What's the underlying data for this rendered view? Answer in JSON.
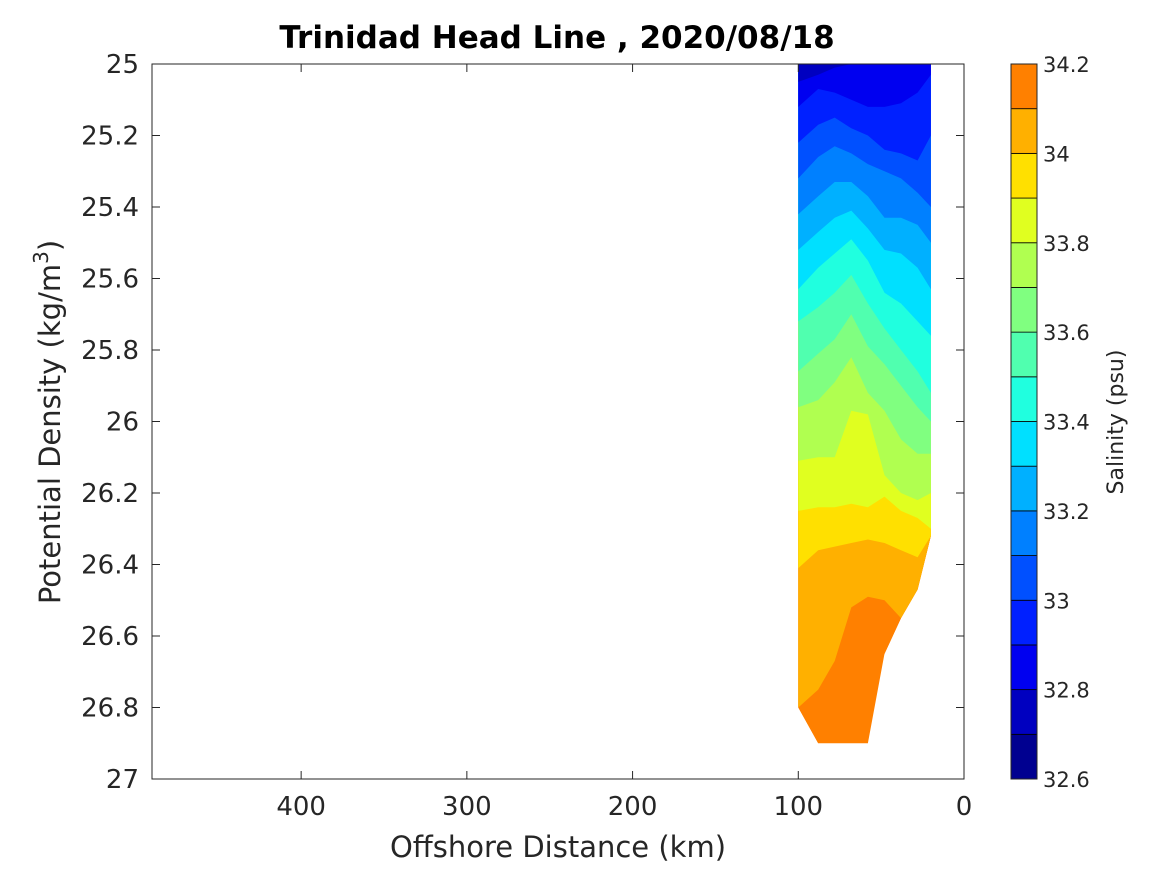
{
  "chart_data": {
    "type": "contourf",
    "title": "Trinidad Head Line , 2020/08/18",
    "xlabel": "Offshore Distance (km)",
    "ylabel": "Potential Density (kg/m",
    "ylabel_sup": "3",
    "ylabel_close": ")",
    "x_reversed": true,
    "y_reversed": true,
    "xlim": [
      0,
      490
    ],
    "ylim": [
      25,
      27
    ],
    "xticks": [
      400,
      300,
      200,
      100,
      0
    ],
    "xtick_labels": [
      "400",
      "300",
      "200",
      "100",
      "0"
    ],
    "yticks": [
      25,
      25.2,
      25.4,
      25.6,
      25.8,
      26,
      26.2,
      26.4,
      26.6,
      26.8,
      27
    ],
    "ytick_labels": [
      "25",
      "25.2",
      "25.4",
      "25.6",
      "25.8",
      "26",
      "26.2",
      "26.4",
      "26.6",
      "26.8",
      "27"
    ],
    "colorbar": {
      "label": "Salinity (psu)",
      "limits": [
        32.6,
        34.2
      ],
      "levels": [
        32.6,
        32.7,
        32.8,
        32.9,
        33.0,
        33.1,
        33.2,
        33.3,
        33.4,
        33.5,
        33.6,
        33.7,
        33.8,
        33.9,
        34.0,
        34.1,
        34.2
      ],
      "ticks": [
        32.6,
        32.8,
        33.0,
        33.2,
        33.4,
        33.6,
        33.8,
        34.0,
        34.2
      ],
      "tick_labels": [
        "32.6",
        "32.8",
        "33",
        "33.2",
        "33.4",
        "33.6",
        "33.8",
        "34",
        "34.2"
      ],
      "colors": [
        "#000090",
        "#0000c0",
        "#0000f0",
        "#0020ff",
        "#0050ff",
        "#0080ff",
        "#00b0ff",
        "#00e0ff",
        "#20ffdf",
        "#50ffaf",
        "#80ff80",
        "#b0ff50",
        "#e0ff20",
        "#ffe000",
        "#ffb000",
        "#ff8000",
        "#ff5000",
        "#ff2000",
        "#f00000",
        "#c00000"
      ]
    },
    "stations_km": [
      100,
      88,
      78,
      68,
      58,
      48,
      38,
      28,
      20
    ],
    "band_boundaries_sigma": [
      {
        "level": 32.7,
        "y": [
          25.01,
          25.02,
          25.0,
          null,
          null,
          null,
          null,
          null,
          null
        ]
      },
      {
        "level": 32.8,
        "y": [
          25.05,
          25.03,
          25.01,
          25.0,
          25.0,
          25.0,
          25.0,
          25.0,
          25.0
        ]
      },
      {
        "level": 32.9,
        "y": [
          25.12,
          25.07,
          25.08,
          25.1,
          25.12,
          25.12,
          25.11,
          25.08,
          25.03
        ]
      },
      {
        "level": 33.0,
        "y": [
          25.22,
          25.17,
          25.15,
          25.18,
          25.2,
          25.24,
          25.25,
          25.27,
          25.2
        ]
      },
      {
        "level": 33.1,
        "y": [
          25.32,
          25.26,
          25.23,
          25.25,
          25.28,
          25.3,
          25.32,
          25.36,
          25.4
        ]
      },
      {
        "level": 33.2,
        "y": [
          25.42,
          25.37,
          25.33,
          25.33,
          25.37,
          25.43,
          25.43,
          25.45,
          25.5
        ]
      },
      {
        "level": 33.3,
        "y": [
          25.52,
          25.47,
          25.43,
          25.41,
          25.46,
          25.52,
          25.53,
          25.57,
          25.63
        ]
      },
      {
        "level": 33.4,
        "y": [
          25.63,
          25.57,
          25.53,
          25.49,
          25.55,
          25.64,
          25.67,
          25.72,
          25.76
        ]
      },
      {
        "level": 33.5,
        "y": [
          25.72,
          25.68,
          25.64,
          25.59,
          25.67,
          25.74,
          25.8,
          25.86,
          25.92
        ]
      },
      {
        "level": 33.6,
        "y": [
          25.86,
          25.81,
          25.77,
          25.7,
          25.79,
          25.84,
          25.9,
          25.96,
          26.0
        ]
      },
      {
        "level": 33.7,
        "y": [
          25.96,
          25.94,
          25.89,
          25.82,
          25.92,
          25.97,
          26.05,
          26.09,
          26.09
        ]
      },
      {
        "level": 33.8,
        "y": [
          26.11,
          26.1,
          26.1,
          25.97,
          25.98,
          26.15,
          26.2,
          26.22,
          26.2
        ]
      },
      {
        "level": 33.9,
        "y": [
          26.25,
          26.24,
          26.24,
          26.23,
          26.24,
          26.21,
          26.25,
          26.27,
          26.3
        ]
      },
      {
        "level": 34.0,
        "y": [
          26.41,
          26.36,
          26.35,
          26.34,
          26.33,
          26.34,
          26.36,
          26.38,
          null
        ]
      },
      {
        "level": 34.1,
        "y": [
          26.8,
          26.75,
          26.67,
          26.52,
          26.49,
          26.5,
          null,
          null,
          null
        ]
      },
      {
        "level": 34.2,
        "y": [
          null,
          null,
          26.85,
          26.8,
          26.74,
          null,
          null,
          null,
          null
        ]
      }
    ],
    "data_bottom_sigma": [
      26.8,
      26.9,
      26.9,
      26.9,
      26.9,
      26.65,
      26.55,
      26.47,
      26.32
    ],
    "grid": false
  }
}
